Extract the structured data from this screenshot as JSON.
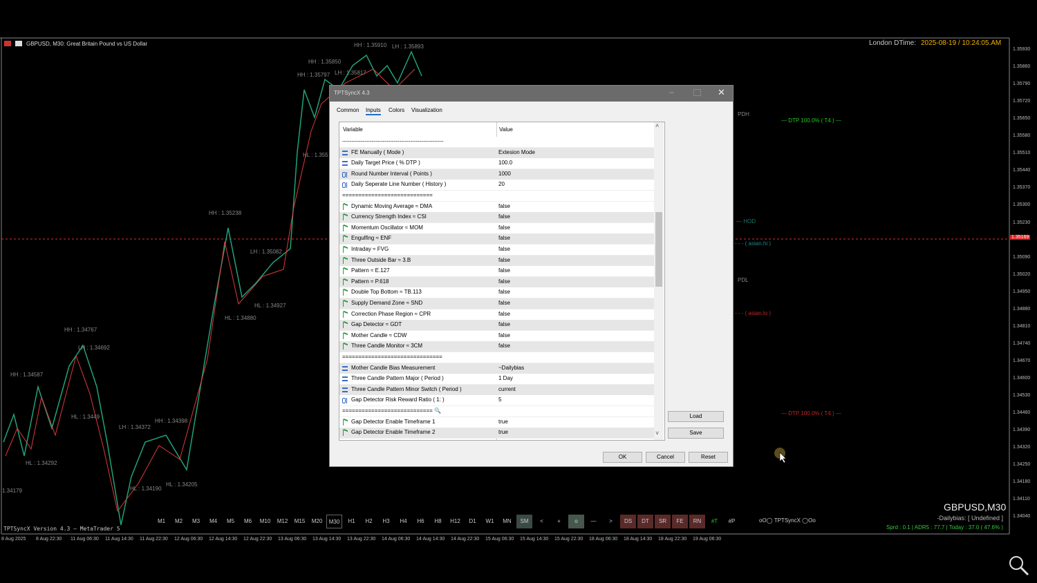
{
  "chart": {
    "symbol": "GBPUSD, M30:  Great Britain Pound vs US Dollar",
    "clock_label": "London DTime:",
    "clock_value": "2025-08-19 / 10:24:05.AM",
    "price_axis": [
      "1.35930",
      "1.35860",
      "1.35790",
      "1.35720",
      "1.35650",
      "1.35580",
      "1.35510",
      "1.35440",
      "1.35370",
      "1.35300",
      "1.35230",
      "1.35090",
      "1.35020",
      "1.34950",
      "1.34880",
      "1.34810",
      "1.34740",
      "1.34670",
      "1.34600",
      "1.34530",
      "1.34460",
      "1.34390",
      "1.34320",
      "1.34250",
      "1.34180",
      "1.34110",
      "1.34040"
    ],
    "current_price": "1.35169",
    "time_axis": [
      "8 Aug 2025",
      "8 Aug 22:30",
      "11 Aug 06:30",
      "11 Aug 14:30",
      "11 Aug 22:30",
      "12 Aug 06:30",
      "12 Aug 14:30",
      "12 Aug 22:30",
      "13 Aug 06:30",
      "13 Aug 14:30",
      "13 Aug 22:30",
      "14 Aug 06:30",
      "14 Aug 14:30",
      "14 Aug 22:30",
      "15 Aug 06:30",
      "15 Aug 14:30",
      "15 Aug 22:30",
      "18 Aug 06:30",
      "18 Aug 14:30",
      "18 Aug 22:30",
      "19 Aug 06:30"
    ],
    "annotations": [
      "HH : 1.35910",
      "LH : 1.35893",
      "HH : 1.35850",
      "HH : 1.35797",
      "LH : 1.35817",
      "HL : 1.355",
      "HH : 1.35238",
      "LH : 1.35082",
      "HL : 1.34927",
      "HL : 1.34880",
      "HH : 1.34767",
      "LH : 1.34692",
      "HH : 1.34587",
      "HL : 1.3449",
      "HH : 1.34398",
      "LH : 1.34372",
      "HL : 1.34292",
      "HL : 1.34190",
      "HL : 1.34205",
      "1.34179"
    ],
    "levels": [
      "PDH",
      "— DTP 100.0% ( T4 ) —",
      "— HOD",
      "- - - ( asian.hi )",
      "PDL",
      "- - - ( asian.lo )",
      "— DTP 100.0% ( T4 ) —"
    ],
    "footer_version": "TPTSyncX Version 4.3 — MetaTrader 5",
    "symbol_corner": "GBPUSD,M30",
    "bias": "-Dailybias: [ Undefined ]",
    "stats": "Sprd : 0.1 | ADR5 : 77.7 | Today : 37.0 ( 47.6% )"
  },
  "toolbar": {
    "buttons": [
      "M1",
      "M2",
      "M3",
      "M4",
      "M5",
      "M6",
      "M10",
      "M12",
      "M15",
      "M20",
      "M30",
      "H1",
      "H2",
      "H3",
      "H4",
      "H6",
      "H8",
      "H12",
      "D1",
      "W1",
      "MN",
      "SM",
      "<",
      "+",
      "o",
      "—",
      ">",
      "DS",
      "DT",
      "SR",
      "FE",
      "RN",
      "#T",
      "#P"
    ],
    "brand": "oO◯ TPTSyncX ◯Oo"
  },
  "dialog": {
    "title": "TPTSyncX 4.3",
    "tabs": [
      "Common",
      "Inputs",
      "Colors",
      "Visualization"
    ],
    "columns": [
      "Variable",
      "Value"
    ],
    "rows": [
      {
        "icon": "sep",
        "variable": "-------------------------------------------------------"
      },
      {
        "icon": "enum",
        "variable": "FE Manually ( Mode )",
        "value": "Extesion Mode"
      },
      {
        "icon": "enum",
        "variable": "Daily Target Price ( % DTP )",
        "value": "100.0"
      },
      {
        "icon": "int",
        "variable": "Round Number Interval ( Points )",
        "value": "1000"
      },
      {
        "icon": "int",
        "variable": "Daily Seperate Line Number ( History )",
        "value": "20"
      },
      {
        "icon": "sep",
        "variable": "============================"
      },
      {
        "icon": "bool",
        "variable": "Dynamic Moving Average ≈ DMA",
        "value": "false"
      },
      {
        "icon": "bool",
        "variable": "Currency Strength Index ≈ CSI",
        "value": "false"
      },
      {
        "icon": "bool",
        "variable": "Momentum Oscillator ≈ MOM",
        "value": "false"
      },
      {
        "icon": "bool",
        "variable": "Engulfing ≈ ENF",
        "value": "false"
      },
      {
        "icon": "bool",
        "variable": "Intraday ≈ FVG",
        "value": "false"
      },
      {
        "icon": "bool",
        "variable": "Three Outside Bar ≈ 3.B",
        "value": "false"
      },
      {
        "icon": "bool",
        "variable": "Pattern ≈ E.127",
        "value": "false"
      },
      {
        "icon": "bool",
        "variable": "Pattern ≈ P.618",
        "value": "false"
      },
      {
        "icon": "bool",
        "variable": "Double Top Bottom ≈ TB.113",
        "value": "false"
      },
      {
        "icon": "bool",
        "variable": "Supply Demand Zone ≈ SND",
        "value": "false"
      },
      {
        "icon": "bool",
        "variable": "Correction Phase Region ≈ CPR",
        "value": "false"
      },
      {
        "icon": "bool",
        "variable": "Gap Detector ≈ GDT",
        "value": "false"
      },
      {
        "icon": "bool",
        "variable": "Mother Candle ≈ CDW",
        "value": "false"
      },
      {
        "icon": "bool",
        "variable": "Three Candle Monitor ≈ 3CM",
        "value": "false"
      },
      {
        "icon": "sep",
        "variable": "==============================="
      },
      {
        "icon": "enum",
        "variable": "Mother Candle Bias Measurement",
        "value": "~Dailybias"
      },
      {
        "icon": "enum",
        "variable": "Three Candle Pattern Major ( Period )",
        "value": "1 Day"
      },
      {
        "icon": "enum",
        "variable": "Three Candle Pattern Minor Switch ( Period )",
        "value": "current"
      },
      {
        "icon": "int",
        "variable": "Gap Detector Risk Reward Ratio ( 1: )",
        "value": "5"
      },
      {
        "icon": "sep",
        "variable": "============================ 🔍"
      },
      {
        "icon": "bool",
        "variable": "Gap Detector Enable Timeframe 1",
        "value": "true"
      },
      {
        "icon": "bool",
        "variable": "Gap Detector Enable Timeframe 2",
        "value": "true"
      }
    ],
    "side_buttons": [
      "Load",
      "Save"
    ],
    "buttons": [
      "OK",
      "Cancel",
      "Reset"
    ]
  }
}
